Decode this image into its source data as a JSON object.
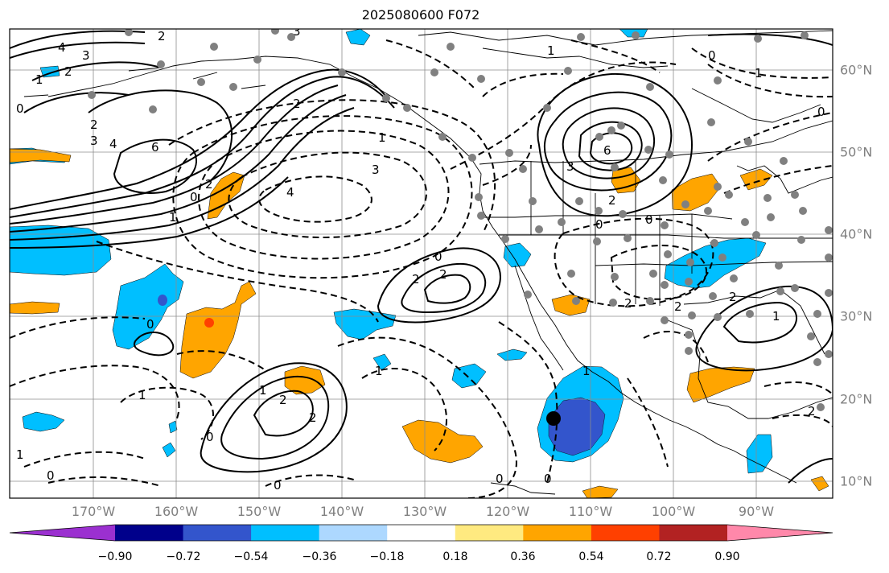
{
  "title": "2025080600 F072",
  "map": {
    "longitude_labels": [
      "170°W",
      "160°W",
      "150°W",
      "140°W",
      "130°W",
      "120°W",
      "110°W",
      "100°W",
      "90°W"
    ],
    "latitude_labels": [
      "60°N",
      "50°N",
      "40°N",
      "30°N",
      "20°N",
      "10°N"
    ],
    "contour_labels": [
      "4",
      "3",
      "2",
      "1",
      "0",
      "2",
      "3",
      "4",
      "6",
      "1",
      "2",
      "0",
      "3",
      "4",
      "1",
      "2",
      "1",
      "0",
      "2",
      "0",
      "1",
      "2",
      "0",
      "1",
      "2",
      "2",
      "0",
      "1",
      "0",
      "0",
      "0",
      "6",
      "3",
      "2",
      "0",
      "1",
      "0",
      "2",
      "1",
      "2",
      "3",
      "2",
      "0",
      "2",
      "1",
      "1",
      "2",
      "0"
    ],
    "marker_color": "#000000",
    "station_dot_color": "#808080",
    "land_outline": "coastlines and state/country borders"
  },
  "colorbar": {
    "ticks": [
      "−0.90",
      "−0.72",
      "−0.54",
      "−0.36",
      "−0.18",
      "0.18",
      "0.36",
      "0.54",
      "0.72",
      "0.90"
    ],
    "colors": [
      "#9b30d0",
      "#00008b",
      "#3355cc",
      "#00bfff",
      "#add8ff",
      "#ffffff",
      "#ffea80",
      "#ffa500",
      "#ff4000",
      "#b22222",
      "#ff88aa"
    ]
  }
}
